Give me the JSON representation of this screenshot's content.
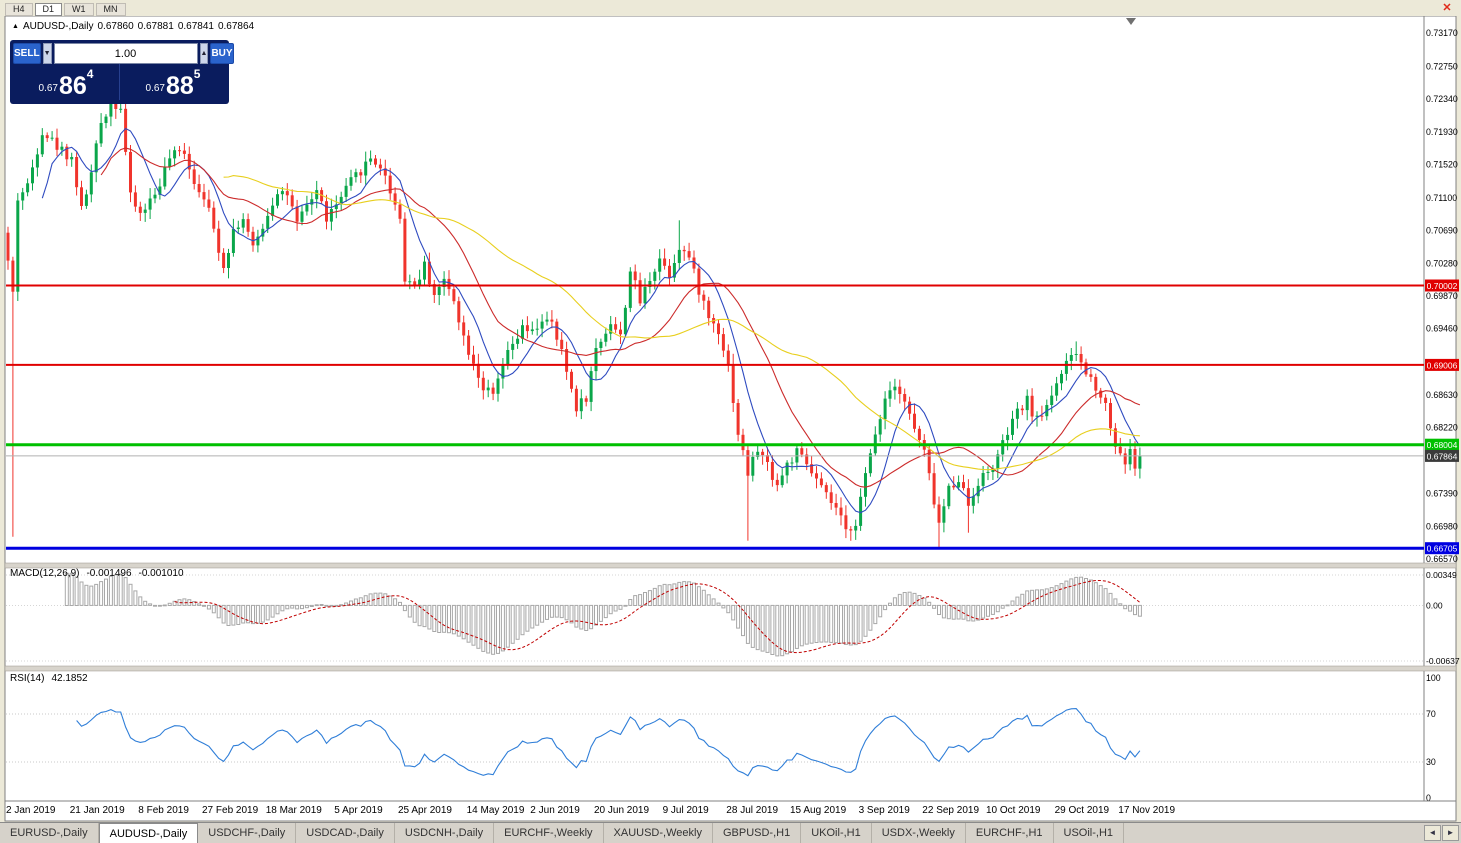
{
  "toolbar": {
    "timeframes": [
      "H4",
      "D1",
      "W1",
      "MN"
    ],
    "active_timeframe": "D1",
    "close_label": "✕"
  },
  "chart": {
    "panel_arrow": "▲",
    "symbol": "AUDUSD-,Daily",
    "open": "0.67860",
    "high": "0.67881",
    "low": "0.67841",
    "close": "0.67864"
  },
  "trade_panel": {
    "sell_label": "SELL",
    "buy_label": "BUY",
    "lot_size": "1.00",
    "lot_down_icon": "▼",
    "lot_up_icon": "▲",
    "sell_price": {
      "prefix": "0.67",
      "big": "86",
      "sup": "4"
    },
    "buy_price": {
      "prefix": "0.67",
      "big": "88",
      "sup": "5"
    }
  },
  "macd": {
    "title": "MACD(12,26,9)",
    "value_main": "-0.001496",
    "value_signal": "-0.001010"
  },
  "rsi": {
    "title": "RSI(14)",
    "value": "42.1852"
  },
  "tabs": {
    "items": [
      "EURUSD-,Daily",
      "AUDUSD-,Daily",
      "USDCHF-,Daily",
      "USDCAD-,Daily",
      "USDCNH-,Daily",
      "EURCHF-,Weekly",
      "XAUUSD-,Weekly",
      "GBPUSD-,H1",
      "UKOil-,H1",
      "USDX-,Weekly",
      "EURCHF-,H1",
      "USOil-,H1"
    ],
    "active_index": 1,
    "scroll_left_icon": "◄",
    "scroll_right_icon": "►"
  },
  "ui_colors": {
    "panel_bg": "#0a1c5e",
    "trade_button": "#2a63cc",
    "toolbar_bg": "#ece9d8",
    "tabs_bar_bg": "#d6d2ca",
    "tab_active_bg": "#ffffff",
    "close_red": "#e02a1a"
  },
  "chart_data": {
    "type": "candlestick",
    "symbol": "AUDUSD",
    "period": "Daily",
    "y_ticks": [
      0.7317,
      0.7275,
      0.7234,
      0.7193,
      0.7152,
      0.711,
      0.7069,
      0.7028,
      0.6987,
      0.6946,
      0.6863,
      0.6822,
      0.6739,
      0.6698,
      0.6657
    ],
    "price_levels": [
      {
        "price": 0.70002,
        "color": "#e00000",
        "width": 2
      },
      {
        "price": 0.69006,
        "color": "#e00000",
        "width": 2
      },
      {
        "price": 0.68004,
        "color": "#00c000",
        "width": 3
      },
      {
        "price": 0.66705,
        "color": "#0000e0",
        "width": 3
      }
    ],
    "current_price": 0.67864,
    "x_labels": [
      [
        "2 Jan 2019",
        0
      ],
      [
        "21 Jan 2019",
        13
      ],
      [
        "8 Feb 2019",
        27
      ],
      [
        "27 Feb 2019",
        40
      ],
      [
        "18 Mar 2019",
        53
      ],
      [
        "5 Apr 2019",
        67
      ],
      [
        "25 Apr 2019",
        80
      ],
      [
        "14 May 2019",
        94
      ],
      [
        "2 Jun 2019",
        107
      ],
      [
        "20 Jun 2019",
        120
      ],
      [
        "9 Jul 2019",
        134
      ],
      [
        "28 Jul 2019",
        147
      ],
      [
        "15 Aug 2019",
        160
      ],
      [
        "3 Sep 2019",
        174
      ],
      [
        "22 Sep 2019",
        187
      ],
      [
        "10 Oct 2019",
        200
      ],
      [
        "29 Oct 2019",
        214
      ],
      [
        "17 Nov 2019",
        227
      ]
    ],
    "candles_approx": {
      "count": 232,
      "anchors": [
        [
          0,
          0.703
        ],
        [
          1,
          0.699
        ],
        [
          2,
          0.711
        ],
        [
          4,
          0.7125
        ],
        [
          7,
          0.7195
        ],
        [
          10,
          0.7175
        ],
        [
          13,
          0.716
        ],
        [
          15,
          0.7095
        ],
        [
          17,
          0.714
        ],
        [
          19,
          0.7205
        ],
        [
          21,
          0.723
        ],
        [
          23,
          0.7225
        ],
        [
          25,
          0.711
        ],
        [
          27,
          0.709
        ],
        [
          30,
          0.7115
        ],
        [
          33,
          0.716
        ],
        [
          36,
          0.717
        ],
        [
          38,
          0.713
        ],
        [
          40,
          0.7115
        ],
        [
          42,
          0.707
        ],
        [
          44,
          0.7025
        ],
        [
          46,
          0.707
        ],
        [
          48,
          0.7085
        ],
        [
          50,
          0.7045
        ],
        [
          53,
          0.709
        ],
        [
          55,
          0.712
        ],
        [
          57,
          0.7115
        ],
        [
          59,
          0.7075
        ],
        [
          61,
          0.71
        ],
        [
          63,
          0.712
        ],
        [
          65,
          0.7085
        ],
        [
          67,
          0.71
        ],
        [
          70,
          0.713
        ],
        [
          74,
          0.716
        ],
        [
          76,
          0.715
        ],
        [
          78,
          0.712
        ],
        [
          80,
          0.7085
        ],
        [
          81,
          0.701
        ],
        [
          83,
          0.7
        ],
        [
          85,
          0.7025
        ],
        [
          87,
          0.699
        ],
        [
          89,
          0.7005
        ],
        [
          91,
          0.6985
        ],
        [
          93,
          0.6935
        ],
        [
          95,
          0.6905
        ],
        [
          97,
          0.6872
        ],
        [
          99,
          0.686
        ],
        [
          101,
          0.69
        ],
        [
          103,
          0.6925
        ],
        [
          105,
          0.6945
        ],
        [
          107,
          0.694
        ],
        [
          109,
          0.6958
        ],
        [
          111,
          0.695
        ],
        [
          113,
          0.6915
        ],
        [
          116,
          0.6848
        ],
        [
          118,
          0.686
        ],
        [
          120,
          0.692
        ],
        [
          123,
          0.6955
        ],
        [
          125,
          0.6935
        ],
        [
          127,
          0.702
        ],
        [
          129,
          0.698
        ],
        [
          131,
          0.701
        ],
        [
          133,
          0.7035
        ],
        [
          135,
          0.7015
        ],
        [
          137,
          0.705
        ],
        [
          139,
          0.7035
        ],
        [
          141,
          0.6995
        ],
        [
          143,
          0.696
        ],
        [
          145,
          0.6945
        ],
        [
          147,
          0.69
        ],
        [
          149,
          0.6815
        ],
        [
          151,
          0.6765
        ],
        [
          153,
          0.6795
        ],
        [
          155,
          0.6775
        ],
        [
          157,
          0.675
        ],
        [
          159,
          0.6775
        ],
        [
          161,
          0.679
        ],
        [
          163,
          0.6775
        ],
        [
          165,
          0.6755
        ],
        [
          167,
          0.6735
        ],
        [
          169,
          0.672
        ],
        [
          171,
          0.669
        ],
        [
          173,
          0.6705
        ],
        [
          175,
          0.676
        ],
        [
          177,
          0.6815
        ],
        [
          179,
          0.686
        ],
        [
          181,
          0.688
        ],
        [
          183,
          0.6855
        ],
        [
          185,
          0.682
        ],
        [
          187,
          0.679
        ],
        [
          189,
          0.673
        ],
        [
          190,
          0.67
        ],
        [
          192,
          0.6745
        ],
        [
          194,
          0.676
        ],
        [
          196,
          0.6725
        ],
        [
          198,
          0.6755
        ],
        [
          200,
          0.6765
        ],
        [
          202,
          0.6785
        ],
        [
          204,
          0.6815
        ],
        [
          206,
          0.684
        ],
        [
          208,
          0.6855
        ],
        [
          210,
          0.683
        ],
        [
          212,
          0.685
        ],
        [
          214,
          0.688
        ],
        [
          216,
          0.69
        ],
        [
          218,
          0.6915
        ],
        [
          220,
          0.689
        ],
        [
          222,
          0.6875
        ],
        [
          224,
          0.685
        ],
        [
          226,
          0.68
        ],
        [
          228,
          0.678
        ],
        [
          229,
          0.679
        ],
        [
          230,
          0.6775
        ],
        [
          231,
          0.67864
        ]
      ],
      "special_lows": [
        [
          1,
          0.6685
        ],
        [
          151,
          0.668
        ],
        [
          190,
          0.6671
        ],
        [
          196,
          0.669
        ]
      ],
      "special_highs": [
        [
          21,
          0.724
        ],
        [
          137,
          0.7082
        ],
        [
          218,
          0.693
        ]
      ]
    },
    "moving_averages": [
      {
        "period": 8,
        "color": "#2f4bc0"
      },
      {
        "period": 20,
        "color": "#cc2b2b"
      },
      {
        "period": 45,
        "color": "#e8cf1e"
      }
    ],
    "indicators": [
      {
        "name": "MACD",
        "params": "12,26,9",
        "axis_labels": [
          "0.00349",
          "0.00",
          "-0.00637"
        ],
        "axis_values": [
          0.00349,
          0,
          -0.00637
        ]
      },
      {
        "name": "RSI",
        "params": "14",
        "axis_labels": [
          "100",
          "70",
          "30",
          "0"
        ],
        "axis_values": [
          100,
          70,
          30,
          0
        ],
        "levels": [
          70,
          30
        ]
      }
    ],
    "colors": {
      "up": "#0aa64a",
      "down": "#f0342c",
      "macd_hist": "#a8a8a8",
      "macd_signal": "#c00000",
      "rsi_line": "#2f7ed8",
      "current_line": "#b0b0b0",
      "current_tag": "#3a3a3a"
    }
  }
}
